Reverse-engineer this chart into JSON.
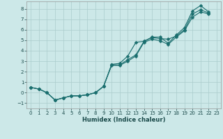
{
  "xlabel": "Humidex (Indice chaleur)",
  "background_color": "#cce8e8",
  "grid_color": "#aacccc",
  "line_color": "#1a6e6e",
  "xlim": [
    -0.5,
    23.5
  ],
  "ylim": [
    -1.5,
    8.7
  ],
  "xticks": [
    0,
    1,
    2,
    3,
    4,
    5,
    6,
    7,
    8,
    9,
    10,
    11,
    12,
    13,
    14,
    15,
    16,
    17,
    18,
    19,
    20,
    21,
    22,
    23
  ],
  "yticks": [
    -1,
    0,
    1,
    2,
    3,
    4,
    5,
    6,
    7,
    8
  ],
  "series": [
    {
      "x": [
        0,
        1,
        2,
        3,
        4,
        5,
        6,
        7,
        8,
        9,
        10,
        11,
        12,
        13,
        14,
        15,
        16,
        17,
        18,
        19,
        20,
        21,
        22
      ],
      "y": [
        0.5,
        0.35,
        0.0,
        -0.7,
        -0.5,
        -0.3,
        -0.3,
        -0.2,
        0.0,
        0.6,
        2.7,
        2.8,
        3.5,
        4.8,
        4.9,
        5.3,
        5.3,
        4.7,
        5.5,
        6.2,
        7.8,
        8.3,
        7.7
      ],
      "marker": "D",
      "markersize": 2.5,
      "linewidth": 0.8
    },
    {
      "x": [
        0,
        1,
        2,
        3,
        4,
        5,
        6,
        7,
        8,
        9,
        10,
        11,
        12,
        13,
        14,
        15,
        16,
        17,
        18,
        19,
        20,
        21,
        22
      ],
      "y": [
        0.5,
        0.35,
        0.0,
        -0.7,
        -0.5,
        -0.3,
        -0.3,
        -0.2,
        0.0,
        0.6,
        2.65,
        2.65,
        3.15,
        3.6,
        4.9,
        5.25,
        5.15,
        5.1,
        5.4,
        6.0,
        7.5,
        7.9,
        7.6
      ],
      "marker": "D",
      "markersize": 2.5,
      "linewidth": 0.8
    },
    {
      "x": [
        0,
        1,
        2,
        3,
        4,
        5,
        6,
        7,
        8,
        9,
        10,
        11,
        12,
        13,
        14,
        15,
        16,
        17,
        18,
        19,
        20,
        21,
        22
      ],
      "y": [
        0.5,
        0.35,
        0.0,
        -0.7,
        -0.5,
        -0.3,
        -0.3,
        -0.2,
        0.0,
        0.6,
        2.6,
        2.6,
        3.0,
        3.5,
        4.8,
        5.1,
        4.95,
        4.6,
        5.3,
        5.9,
        7.2,
        7.7,
        7.5
      ],
      "marker": "D",
      "markersize": 2.5,
      "linewidth": 0.8
    }
  ]
}
